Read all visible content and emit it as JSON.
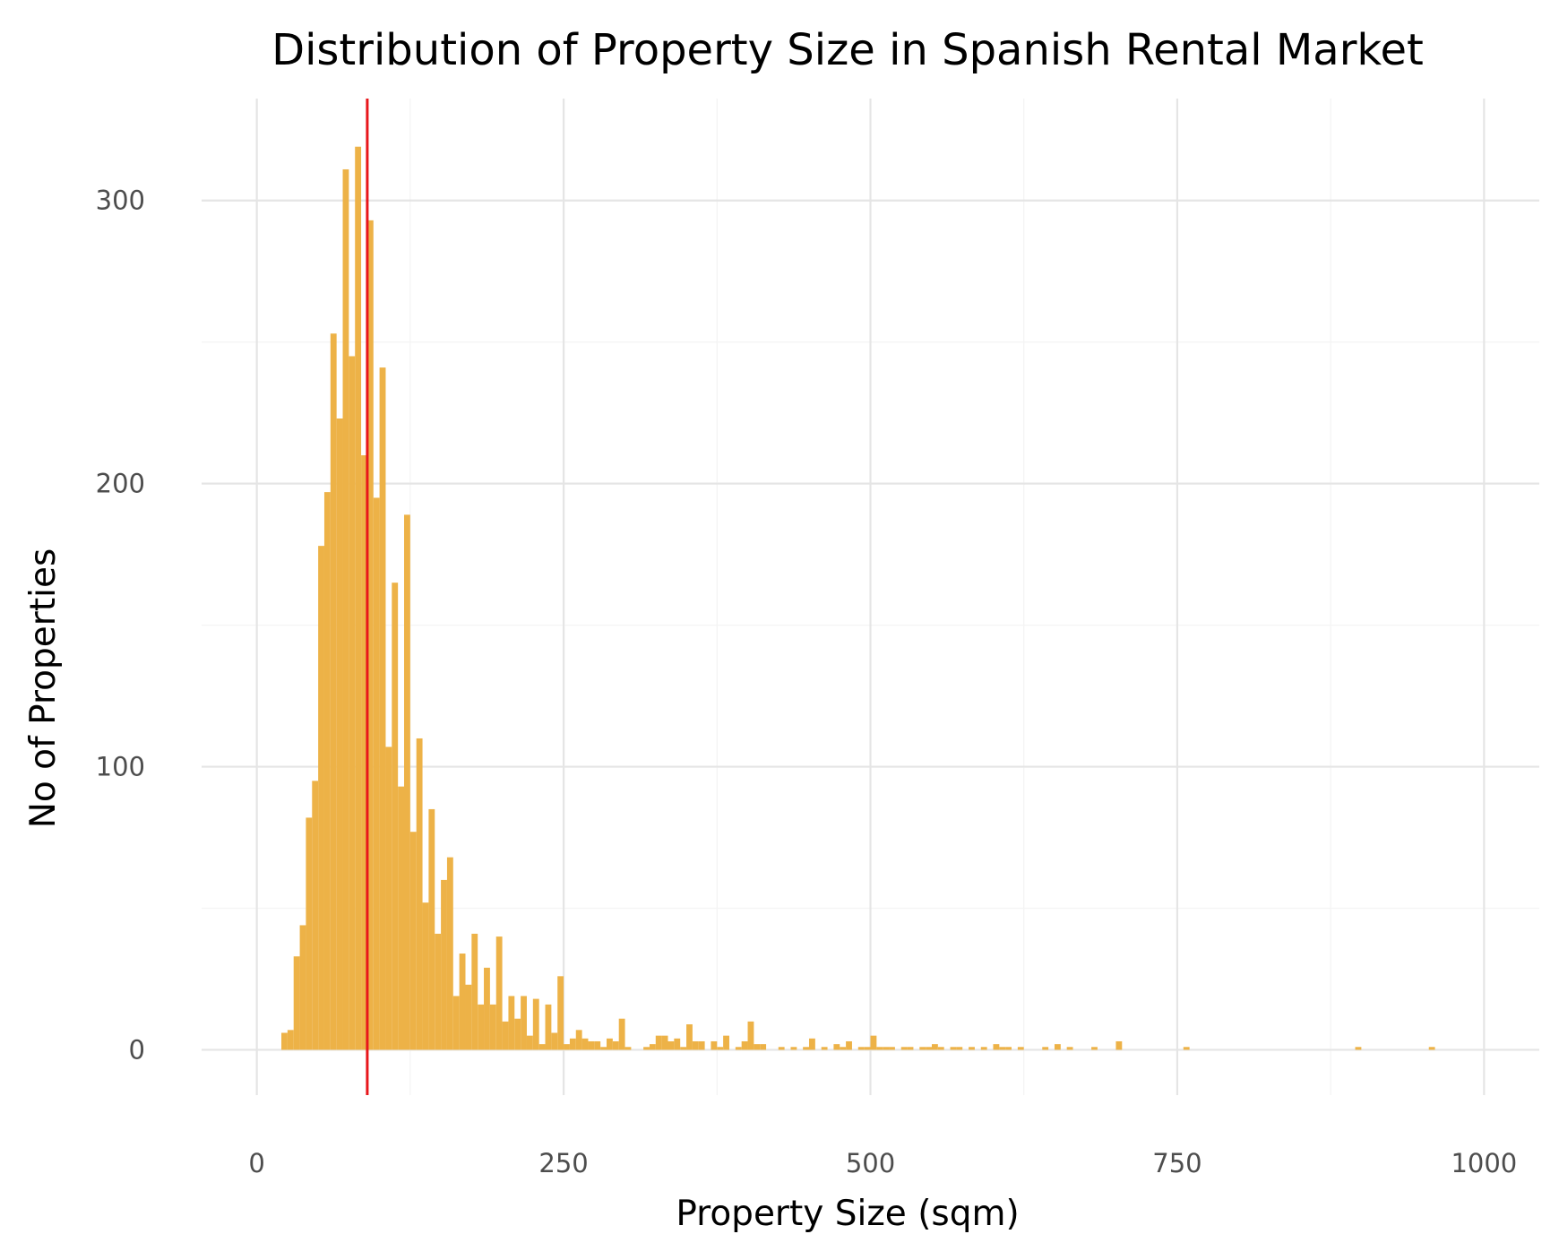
{
  "chart_data": {
    "type": "bar",
    "title": "Distribution of Property Size in Spanish Rental Market",
    "xlabel": "Property Size (sqm)",
    "ylabel": "No of Properties",
    "xlim": [
      -45,
      1045
    ],
    "ylim": [
      -16,
      336
    ],
    "x_ticks": [
      0,
      250,
      500,
      750,
      1000
    ],
    "x_tick_labels": [
      "0",
      "250",
      "500",
      "750",
      "1000"
    ],
    "y_ticks": [
      0,
      100,
      200,
      300
    ],
    "y_tick_labels": [
      "0",
      "100",
      "200",
      "300"
    ],
    "grid": true,
    "bin_width": 5,
    "bar_color": "#EDB247",
    "reference_line": {
      "x": 90,
      "color": "#E8161B"
    },
    "bins": [
      {
        "x": 20,
        "value": 6
      },
      {
        "x": 25,
        "value": 7
      },
      {
        "x": 30,
        "value": 33
      },
      {
        "x": 35,
        "value": 44
      },
      {
        "x": 40,
        "value": 82
      },
      {
        "x": 45,
        "value": 95
      },
      {
        "x": 50,
        "value": 178
      },
      {
        "x": 55,
        "value": 197
      },
      {
        "x": 60,
        "value": 253
      },
      {
        "x": 65,
        "value": 223
      },
      {
        "x": 70,
        "value": 311
      },
      {
        "x": 75,
        "value": 245
      },
      {
        "x": 80,
        "value": 319
      },
      {
        "x": 85,
        "value": 210
      },
      {
        "x": 90,
        "value": 293
      },
      {
        "x": 95,
        "value": 195
      },
      {
        "x": 100,
        "value": 241
      },
      {
        "x": 105,
        "value": 107
      },
      {
        "x": 110,
        "value": 165
      },
      {
        "x": 115,
        "value": 93
      },
      {
        "x": 120,
        "value": 189
      },
      {
        "x": 125,
        "value": 77
      },
      {
        "x": 130,
        "value": 110
      },
      {
        "x": 135,
        "value": 52
      },
      {
        "x": 140,
        "value": 85
      },
      {
        "x": 145,
        "value": 41
      },
      {
        "x": 150,
        "value": 60
      },
      {
        "x": 155,
        "value": 68
      },
      {
        "x": 160,
        "value": 19
      },
      {
        "x": 165,
        "value": 34
      },
      {
        "x": 170,
        "value": 23
      },
      {
        "x": 175,
        "value": 41
      },
      {
        "x": 180,
        "value": 16
      },
      {
        "x": 185,
        "value": 29
      },
      {
        "x": 190,
        "value": 16
      },
      {
        "x": 195,
        "value": 40
      },
      {
        "x": 200,
        "value": 10
      },
      {
        "x": 205,
        "value": 19
      },
      {
        "x": 210,
        "value": 11
      },
      {
        "x": 215,
        "value": 19
      },
      {
        "x": 220,
        "value": 5
      },
      {
        "x": 225,
        "value": 18
      },
      {
        "x": 230,
        "value": 2
      },
      {
        "x": 235,
        "value": 16
      },
      {
        "x": 240,
        "value": 6
      },
      {
        "x": 245,
        "value": 26
      },
      {
        "x": 250,
        "value": 2
      },
      {
        "x": 255,
        "value": 4
      },
      {
        "x": 260,
        "value": 7
      },
      {
        "x": 265,
        "value": 4
      },
      {
        "x": 270,
        "value": 3
      },
      {
        "x": 275,
        "value": 3
      },
      {
        "x": 280,
        "value": 1
      },
      {
        "x": 285,
        "value": 4
      },
      {
        "x": 290,
        "value": 3
      },
      {
        "x": 295,
        "value": 11
      },
      {
        "x": 300,
        "value": 1
      },
      {
        "x": 315,
        "value": 1
      },
      {
        "x": 320,
        "value": 2
      },
      {
        "x": 325,
        "value": 5
      },
      {
        "x": 330,
        "value": 5
      },
      {
        "x": 335,
        "value": 3
      },
      {
        "x": 340,
        "value": 4
      },
      {
        "x": 345,
        "value": 1
      },
      {
        "x": 350,
        "value": 9
      },
      {
        "x": 355,
        "value": 3
      },
      {
        "x": 360,
        "value": 3
      },
      {
        "x": 370,
        "value": 3
      },
      {
        "x": 375,
        "value": 1
      },
      {
        "x": 380,
        "value": 5
      },
      {
        "x": 390,
        "value": 1
      },
      {
        "x": 395,
        "value": 3
      },
      {
        "x": 400,
        "value": 10
      },
      {
        "x": 405,
        "value": 2
      },
      {
        "x": 410,
        "value": 2
      },
      {
        "x": 425,
        "value": 1
      },
      {
        "x": 435,
        "value": 1
      },
      {
        "x": 445,
        "value": 1
      },
      {
        "x": 450,
        "value": 4
      },
      {
        "x": 460,
        "value": 1
      },
      {
        "x": 470,
        "value": 2
      },
      {
        "x": 475,
        "value": 1
      },
      {
        "x": 480,
        "value": 3
      },
      {
        "x": 490,
        "value": 1
      },
      {
        "x": 495,
        "value": 1
      },
      {
        "x": 500,
        "value": 5
      },
      {
        "x": 505,
        "value": 1
      },
      {
        "x": 510,
        "value": 1
      },
      {
        "x": 515,
        "value": 1
      },
      {
        "x": 525,
        "value": 1
      },
      {
        "x": 530,
        "value": 1
      },
      {
        "x": 540,
        "value": 1
      },
      {
        "x": 545,
        "value": 1
      },
      {
        "x": 550,
        "value": 2
      },
      {
        "x": 555,
        "value": 1
      },
      {
        "x": 565,
        "value": 1
      },
      {
        "x": 570,
        "value": 1
      },
      {
        "x": 580,
        "value": 1
      },
      {
        "x": 590,
        "value": 1
      },
      {
        "x": 600,
        "value": 2
      },
      {
        "x": 605,
        "value": 1
      },
      {
        "x": 610,
        "value": 1
      },
      {
        "x": 620,
        "value": 1
      },
      {
        "x": 640,
        "value": 1
      },
      {
        "x": 650,
        "value": 2
      },
      {
        "x": 660,
        "value": 1
      },
      {
        "x": 680,
        "value": 1
      },
      {
        "x": 700,
        "value": 3
      },
      {
        "x": 755,
        "value": 1
      },
      {
        "x": 895,
        "value": 1
      },
      {
        "x": 955,
        "value": 1
      }
    ]
  }
}
